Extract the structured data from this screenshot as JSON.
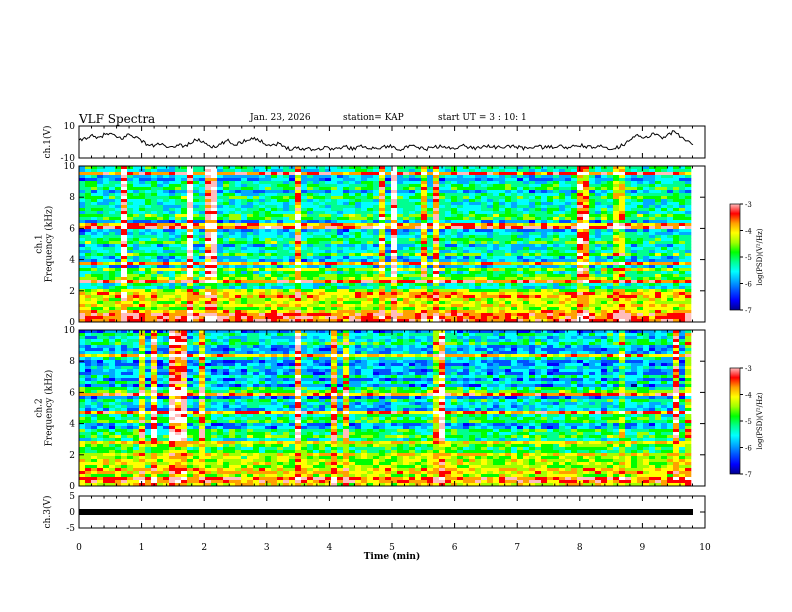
{
  "header": {
    "title": "VLF Spectra",
    "date": "Jan. 23, 2026",
    "station": "station= KAP",
    "start": "start  UT  =   3  : 10: 1"
  },
  "chart_data": [
    {
      "type": "line",
      "ylabel": "ch.1(V)",
      "ylim": [
        -10,
        10
      ],
      "yticks": [
        "10",
        "-10"
      ],
      "series": [
        {
          "values": [
            0.5,
            2.5,
            3.8,
            2.0,
            4.5,
            5.2,
            3.0,
            2.2,
            4.8,
            3.5,
            1.0,
            -1.5,
            -2.5,
            -0.8,
            -3.2,
            -4.0,
            -1.2,
            -2.8,
            -0.5,
            1.5,
            0.2,
            -2.0,
            -3.8,
            -1.0,
            0.8,
            -1.8,
            -0.3,
            1.2,
            2.8,
            1.0,
            -0.8,
            -2.2,
            -1.0,
            -2.8,
            -4.2,
            -3.5,
            -4.5,
            -3.8,
            -4.8,
            -4.0,
            -3.2,
            -4.6,
            -3.8,
            -2.9,
            -4.1,
            -3.3,
            -2.5,
            -3.7,
            -4.2,
            -3.0,
            -2.6,
            -3.6,
            -4.4,
            -3.2,
            -2.8,
            -3.9,
            -4.3,
            -3.4,
            -2.7,
            -3.5,
            -4.0,
            -3.1,
            -2.4,
            -3.3,
            -3.9,
            -2.8,
            -2.2,
            -3.2,
            -3.7,
            -2.9,
            -2.5,
            -3.4,
            -4.1,
            -3.0,
            -2.7,
            -3.6,
            -3.2,
            -2.5,
            -3.0,
            -3.8,
            -2.6,
            -2.1,
            -3.1,
            -3.6,
            -2.8,
            -3.3,
            -4.0,
            -3.2,
            -1.0,
            2.5,
            4.2,
            1.8,
            3.8,
            5.6,
            2.5,
            4.8,
            6.5,
            3.2,
            1.0,
            -2.0
          ]
        }
      ]
    },
    {
      "type": "heatmap",
      "ylabel": "ch.1\nFrequency (kHz)",
      "ylim": [
        0,
        10
      ],
      "yticks": [
        "0",
        "2",
        "4",
        "6",
        "8",
        "10"
      ],
      "colorbar": {
        "label": "log(PSD)(V²/Hz)",
        "range": [
          -7,
          -3
        ],
        "ticks": [
          "-3",
          "-4",
          "-5",
          "-6",
          "-7"
        ]
      }
    },
    {
      "type": "heatmap",
      "ylabel": "ch.2\nFrequency (kHz)",
      "ylim": [
        0,
        10
      ],
      "yticks": [
        "0",
        "2",
        "4",
        "6",
        "8",
        "10"
      ],
      "colorbar": {
        "label": "log(PSD)(V²/Hz)",
        "range": [
          -7,
          -3
        ],
        "ticks": [
          "-3",
          "-4",
          "-5",
          "-6",
          "-7"
        ]
      }
    },
    {
      "type": "line",
      "ylabel": "ch.3(V)",
      "ylim": [
        -5,
        5
      ],
      "yticks": [
        "5",
        "0",
        "-5"
      ],
      "series": [
        {
          "values": [
            0,
            0
          ]
        }
      ]
    }
  ],
  "xaxis": {
    "label": "Time (min)",
    "range": [
      0,
      10
    ],
    "ticks": [
      "0",
      "1",
      "2",
      "3",
      "4",
      "5",
      "6",
      "7",
      "8",
      "9",
      "10"
    ]
  },
  "colors": {
    "spectrum": [
      "#00008c",
      "#0000ff",
      "#0050ff",
      "#00aaff",
      "#00ffff",
      "#00ff90",
      "#00ff00",
      "#a0ff00",
      "#ffff00",
      "#ffa000",
      "#ff0000",
      "#ffbcbc",
      "#ffffff"
    ]
  }
}
